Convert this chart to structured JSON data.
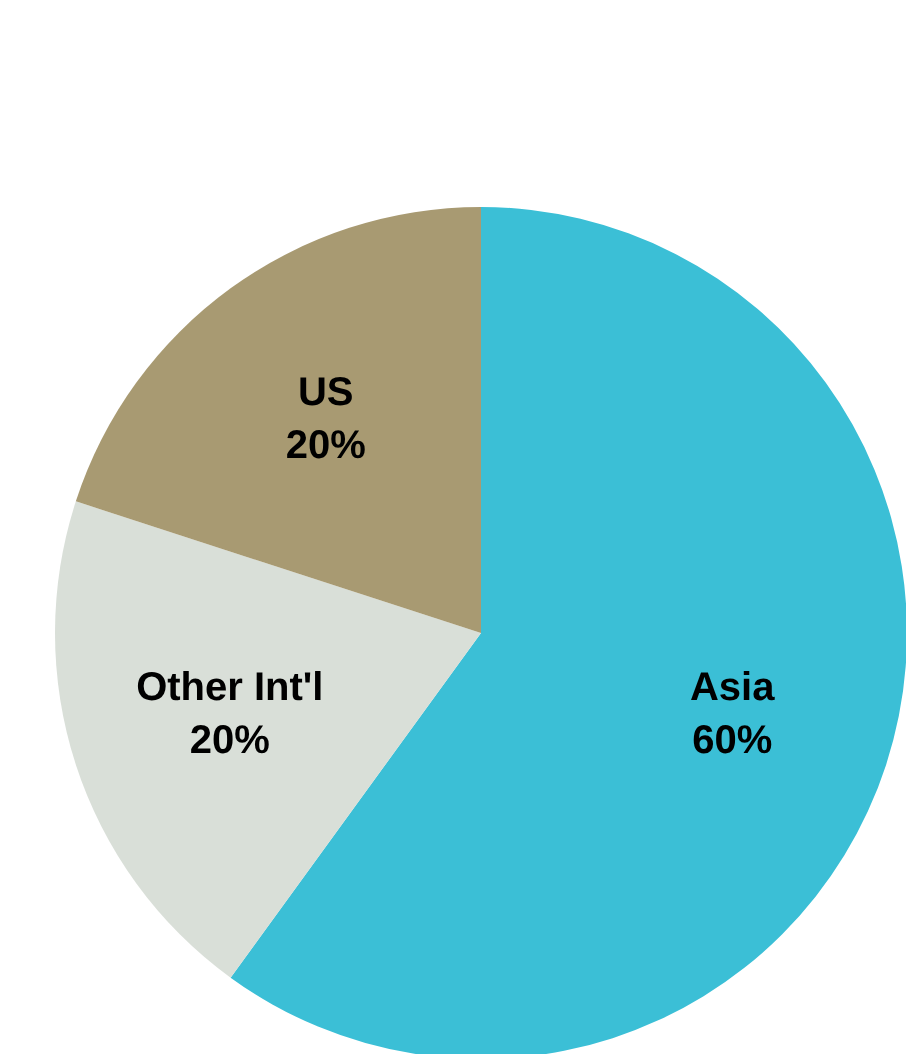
{
  "chart_data": {
    "type": "pie",
    "categories": [
      "Asia",
      "Other Int'l",
      "US"
    ],
    "values": [
      60,
      20,
      20
    ],
    "colors": [
      "#3bbfd6",
      "#d9dfd8",
      "#a89a72"
    ],
    "value_labels": [
      "60%",
      "20%",
      "20%"
    ],
    "legend": false
  }
}
